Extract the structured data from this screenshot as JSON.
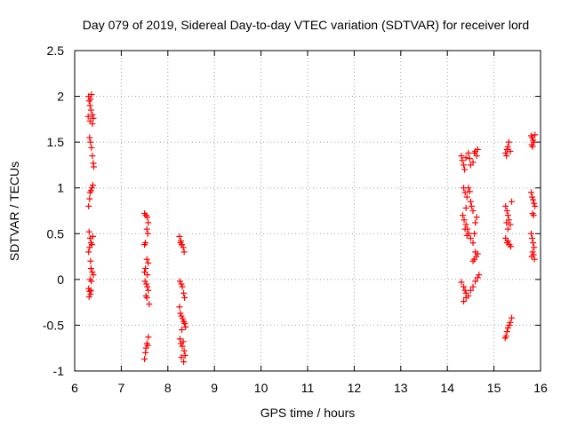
{
  "chart_data": {
    "type": "scatter",
    "title": "Day 079 of 2019, Sidereal Day-to-day VTEC variation (SDTVAR) for receiver lord",
    "xlabel": "GPS time / hours",
    "ylabel": "SDTVAR / TECUs",
    "xlim": [
      6,
      16
    ],
    "ylim": [
      -1,
      2.5
    ],
    "xticks": [
      "6",
      "7",
      "8",
      "9",
      "10",
      "11",
      "12",
      "13",
      "14",
      "15",
      "16"
    ],
    "yticks": [
      "-1",
      "-0.5",
      "0",
      "0.5",
      "1",
      "1.5",
      "2",
      "2.5"
    ],
    "grid": true,
    "series": [
      {
        "name": "SDTVAR",
        "marker": "+",
        "color": "#ff0000",
        "points": [
          [
            6.3,
            2.0
          ],
          [
            6.31,
            1.95
          ],
          [
            6.33,
            1.9
          ],
          [
            6.34,
            1.97
          ],
          [
            6.36,
            2.02
          ],
          [
            6.35,
            1.85
          ],
          [
            6.38,
            1.8
          ],
          [
            6.4,
            1.76
          ],
          [
            6.33,
            1.73
          ],
          [
            6.29,
            1.78
          ],
          [
            6.38,
            1.7
          ],
          [
            6.32,
            1.55
          ],
          [
            6.34,
            1.5
          ],
          [
            6.36,
            1.44
          ],
          [
            6.38,
            1.35
          ],
          [
            6.4,
            1.27
          ],
          [
            6.41,
            1.23
          ],
          [
            6.3,
            0.8
          ],
          [
            6.33,
            0.95
          ],
          [
            6.35,
            0.97
          ],
          [
            6.37,
            1.0
          ],
          [
            6.39,
            1.03
          ],
          [
            6.32,
            0.88
          ],
          [
            6.31,
            0.52
          ],
          [
            6.33,
            0.45
          ],
          [
            6.35,
            0.4
          ],
          [
            6.37,
            0.38
          ],
          [
            6.39,
            0.47
          ],
          [
            6.32,
            0.35
          ],
          [
            6.3,
            0.3
          ],
          [
            6.34,
            0.2
          ],
          [
            6.35,
            0.12
          ],
          [
            6.38,
            0.08
          ],
          [
            6.4,
            0.05
          ],
          [
            6.33,
            0.0
          ],
          [
            6.36,
            -0.02
          ],
          [
            6.3,
            -0.1
          ],
          [
            6.32,
            -0.13
          ],
          [
            6.34,
            -0.16
          ],
          [
            6.31,
            -0.19
          ],
          [
            6.35,
            -0.12
          ],
          [
            7.5,
            0.72
          ],
          [
            7.53,
            0.7
          ],
          [
            7.56,
            0.68
          ],
          [
            7.58,
            0.62
          ],
          [
            7.55,
            0.55
          ],
          [
            7.57,
            0.5
          ],
          [
            7.52,
            0.4
          ],
          [
            7.5,
            0.38
          ],
          [
            7.55,
            0.22
          ],
          [
            7.58,
            0.18
          ],
          [
            7.52,
            0.12
          ],
          [
            7.5,
            0.08
          ],
          [
            7.56,
            0.05
          ],
          [
            7.51,
            -0.02
          ],
          [
            7.54,
            -0.05
          ],
          [
            7.56,
            -0.08
          ],
          [
            7.58,
            -0.12
          ],
          [
            7.53,
            -0.18
          ],
          [
            7.55,
            -0.2
          ],
          [
            7.6,
            -0.27
          ],
          [
            7.58,
            -0.63
          ],
          [
            7.55,
            -0.7
          ],
          [
            7.53,
            -0.75
          ],
          [
            7.52,
            -0.8
          ],
          [
            7.5,
            -0.87
          ],
          [
            7.57,
            -0.72
          ],
          [
            8.25,
            0.47
          ],
          [
            8.28,
            0.42
          ],
          [
            8.3,
            0.38
          ],
          [
            8.33,
            0.35
          ],
          [
            8.35,
            0.3
          ],
          [
            8.27,
            0.4
          ],
          [
            8.26,
            -0.02
          ],
          [
            8.29,
            -0.05
          ],
          [
            8.31,
            -0.08
          ],
          [
            8.34,
            -0.15
          ],
          [
            8.36,
            -0.2
          ],
          [
            8.25,
            -0.3
          ],
          [
            8.27,
            -0.37
          ],
          [
            8.29,
            -0.4
          ],
          [
            8.32,
            -0.43
          ],
          [
            8.34,
            -0.46
          ],
          [
            8.36,
            -0.48
          ],
          [
            8.38,
            -0.52
          ],
          [
            8.3,
            -0.55
          ],
          [
            8.26,
            -0.65
          ],
          [
            8.28,
            -0.7
          ],
          [
            8.31,
            -0.73
          ],
          [
            8.33,
            -0.68
          ],
          [
            8.35,
            -0.78
          ],
          [
            8.37,
            -0.83
          ],
          [
            8.29,
            -0.85
          ],
          [
            8.34,
            -0.9
          ],
          [
            14.3,
            1.35
          ],
          [
            14.32,
            1.3
          ],
          [
            14.35,
            1.25
          ],
          [
            14.37,
            1.2
          ],
          [
            14.4,
            1.33
          ],
          [
            14.45,
            1.38
          ],
          [
            14.48,
            1.32
          ],
          [
            14.55,
            1.28
          ],
          [
            14.6,
            1.4
          ],
          [
            14.63,
            1.35
          ],
          [
            14.65,
            1.42
          ],
          [
            14.58,
            1.38
          ],
          [
            14.5,
            1.25
          ],
          [
            14.35,
            1.0
          ],
          [
            14.38,
            0.95
          ],
          [
            14.42,
            0.9
          ],
          [
            14.45,
            1.0
          ],
          [
            14.48,
            0.96
          ],
          [
            14.5,
            0.85
          ],
          [
            14.52,
            0.8
          ],
          [
            14.55,
            0.75
          ],
          [
            14.4,
            0.78
          ],
          [
            14.33,
            0.7
          ],
          [
            14.36,
            0.65
          ],
          [
            14.4,
            0.6
          ],
          [
            14.43,
            0.55
          ],
          [
            14.46,
            0.5
          ],
          [
            14.5,
            0.45
          ],
          [
            14.55,
            0.4
          ],
          [
            14.58,
            0.5
          ],
          [
            14.6,
            0.62
          ],
          [
            14.63,
            0.68
          ],
          [
            14.38,
            0.55
          ],
          [
            14.42,
            0.48
          ],
          [
            14.6,
            0.3
          ],
          [
            14.62,
            0.25
          ],
          [
            14.65,
            0.28
          ],
          [
            14.58,
            0.22
          ],
          [
            14.55,
            0.2
          ],
          [
            14.3,
            -0.03
          ],
          [
            14.35,
            -0.08
          ],
          [
            14.38,
            -0.12
          ],
          [
            14.4,
            -0.15
          ],
          [
            14.45,
            -0.18
          ],
          [
            14.5,
            -0.12
          ],
          [
            14.55,
            -0.08
          ],
          [
            14.6,
            -0.02
          ],
          [
            14.65,
            0.02
          ],
          [
            14.68,
            0.05
          ],
          [
            14.4,
            -0.2
          ],
          [
            14.35,
            -0.24
          ],
          [
            15.25,
            1.38
          ],
          [
            15.28,
            1.42
          ],
          [
            15.3,
            1.45
          ],
          [
            15.32,
            1.5
          ],
          [
            15.35,
            1.4
          ],
          [
            15.27,
            1.35
          ],
          [
            15.25,
            0.8
          ],
          [
            15.28,
            0.75
          ],
          [
            15.3,
            0.7
          ],
          [
            15.32,
            0.65
          ],
          [
            15.35,
            0.6
          ],
          [
            15.38,
            0.85
          ],
          [
            15.27,
            0.62
          ],
          [
            15.3,
            0.55
          ],
          [
            15.25,
            0.45
          ],
          [
            15.28,
            0.4
          ],
          [
            15.3,
            0.42
          ],
          [
            15.33,
            0.38
          ],
          [
            15.36,
            0.36
          ],
          [
            15.38,
            -0.42
          ],
          [
            15.35,
            -0.47
          ],
          [
            15.33,
            -0.5
          ],
          [
            15.3,
            -0.53
          ],
          [
            15.28,
            -0.57
          ],
          [
            15.26,
            -0.62
          ],
          [
            15.24,
            -0.64
          ],
          [
            15.8,
            1.57
          ],
          [
            15.82,
            1.55
          ],
          [
            15.84,
            1.52
          ],
          [
            15.86,
            1.5
          ],
          [
            15.88,
            1.58
          ],
          [
            15.81,
            1.47
          ],
          [
            15.83,
            1.45
          ],
          [
            15.8,
            0.95
          ],
          [
            15.82,
            0.9
          ],
          [
            15.84,
            0.87
          ],
          [
            15.86,
            0.83
          ],
          [
            15.88,
            0.8
          ],
          [
            15.83,
            0.72
          ],
          [
            15.85,
            0.7
          ],
          [
            15.8,
            0.5
          ],
          [
            15.82,
            0.45
          ],
          [
            15.84,
            0.4
          ],
          [
            15.86,
            0.35
          ],
          [
            15.83,
            0.3
          ],
          [
            15.85,
            0.27
          ],
          [
            15.81,
            0.25
          ],
          [
            15.87,
            0.22
          ]
        ]
      }
    ]
  }
}
